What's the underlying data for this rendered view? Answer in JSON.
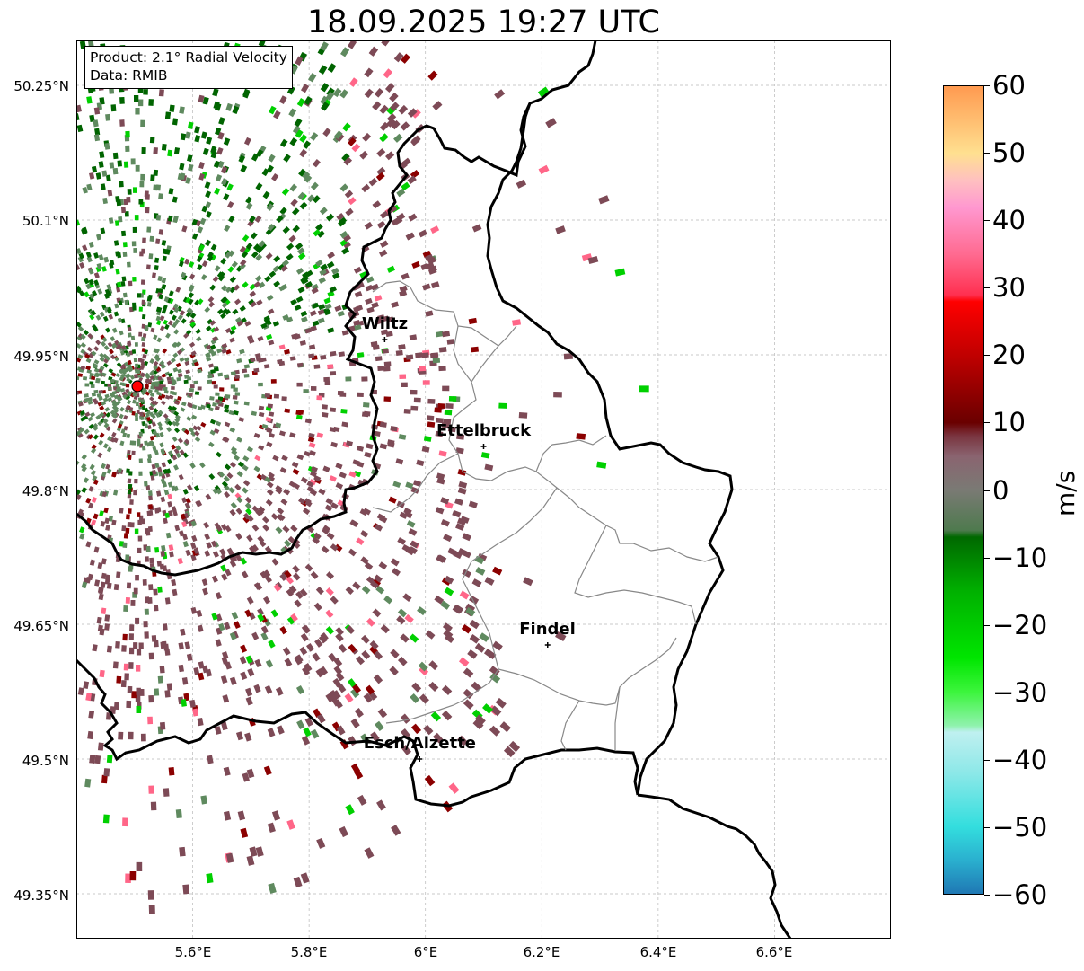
{
  "title": "18.09.2025 19:27 UTC",
  "info_box": {
    "product": "Product: 2.1° Radial Velocity",
    "data": "Data: RMIB"
  },
  "axes": {
    "lat_ticks": [
      "50.25°N",
      "50.1°N",
      "49.95°N",
      "49.8°N",
      "49.65°N",
      "49.5°N",
      "49.35°N"
    ],
    "lon_ticks": [
      "5.6°E",
      "5.8°E",
      "6°E",
      "6.2°E",
      "6.4°E",
      "6.6°E"
    ],
    "lat_range": [
      49.3,
      50.3
    ],
    "lon_range": [
      5.4,
      6.8
    ],
    "grid": true
  },
  "cities": [
    {
      "name": "Wiltz",
      "lon": 5.93,
      "lat": 49.967
    },
    {
      "name": "Ettelbruck",
      "lon": 6.1,
      "lat": 49.848
    },
    {
      "name": "Findel",
      "lon": 6.21,
      "lat": 49.627
    },
    {
      "name": "Esch/Alzette",
      "lon": 5.99,
      "lat": 49.5
    }
  ],
  "radar_site": {
    "lon": 5.505,
    "lat": 49.915,
    "color": "#ff0000"
  },
  "colorbar": {
    "label": "m/s",
    "min": -60,
    "max": 60,
    "ticks": [
      "60",
      "50",
      "40",
      "30",
      "20",
      "10",
      "0",
      "−10",
      "−20",
      "−30",
      "−40",
      "−50",
      "−60"
    ],
    "stops": [
      {
        "v": -60,
        "c": "#1f78b4"
      },
      {
        "v": -55,
        "c": "#2ab0cf"
      },
      {
        "v": -50,
        "c": "#33dede"
      },
      {
        "v": -42,
        "c": "#8de8e8"
      },
      {
        "v": -36,
        "c": "#bff0f0"
      },
      {
        "v": -35,
        "c": "#8ff2ad"
      },
      {
        "v": -30,
        "c": "#3cf53c"
      },
      {
        "v": -25,
        "c": "#00e600"
      },
      {
        "v": -15,
        "c": "#00b000"
      },
      {
        "v": -7,
        "c": "#006800"
      },
      {
        "v": -6,
        "c": "#4e7a4e"
      },
      {
        "v": 0,
        "c": "#7a7a74"
      },
      {
        "v": 5,
        "c": "#8a6470"
      },
      {
        "v": 8,
        "c": "#7a3540"
      },
      {
        "v": 10,
        "c": "#6a0000"
      },
      {
        "v": 20,
        "c": "#c00000"
      },
      {
        "v": 28,
        "c": "#ff0000"
      },
      {
        "v": 29,
        "c": "#ff3050"
      },
      {
        "v": 35,
        "c": "#ff6a90"
      },
      {
        "v": 42,
        "c": "#ff98d0"
      },
      {
        "v": 46,
        "c": "#ffc0c0"
      },
      {
        "v": 50,
        "c": "#ffe090"
      },
      {
        "v": 60,
        "c": "#ff9a50"
      }
    ]
  },
  "colors": {
    "approaching_dark": "#006400",
    "approaching_light": "#00d000",
    "near_zero_green": "#5f8a5f",
    "near_zero_mauve": "#7d4a56",
    "receding": "#8b0000",
    "receding_pink": "#ff6688",
    "borders_national": "#000000",
    "borders_cantonal": "#888888"
  }
}
